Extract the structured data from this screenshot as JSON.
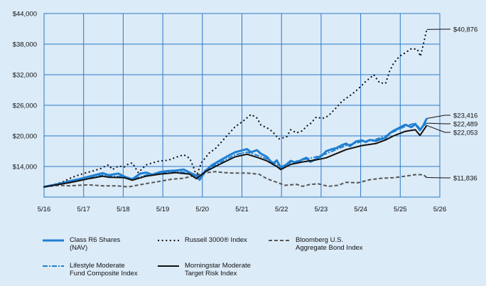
{
  "chart_data": {
    "type": "line",
    "x_ticks": [
      "5/16",
      "5/17",
      "5/18",
      "5/19",
      "5/20",
      "5/21",
      "5/22",
      "5/23",
      "5/24",
      "5/25",
      "5/26"
    ],
    "y_ticks": [
      "$14,000",
      "$20,000",
      "$26,000",
      "$32,000",
      "$38,000",
      "$44,000"
    ],
    "y_tick_values": [
      14000,
      20000,
      26000,
      32000,
      38000,
      44000
    ],
    "ylim": [
      8000,
      44000
    ],
    "grid": true,
    "legend_position": "bottom",
    "colors": {
      "background": "#dcebf8",
      "grid": "#2a78c9",
      "class_r6": "#1f7fd0",
      "lifestyle": "#1f7fd0",
      "russell": "#111111",
      "bloomberg": "#555555",
      "morningstar": "#111111"
    },
    "series": [
      {
        "key": "class_r6",
        "name": "Class R6 Shares\n(NAV)",
        "style": "solid-thick",
        "x": [
          2016.37,
          2016.5,
          2016.75,
          2017.0,
          2017.25,
          2017.5,
          2017.7,
          2017.85,
          2018.0,
          2018.25,
          2018.4,
          2018.6,
          2018.8,
          2018.95,
          2019.1,
          2019.3,
          2019.5,
          2019.7,
          2019.9,
          2020.05,
          2020.2,
          2020.3,
          2020.45,
          2020.6,
          2020.8,
          2021.0,
          2021.2,
          2021.5,
          2021.6,
          2021.75,
          2021.85,
          2022.0,
          2022.15,
          2022.25,
          2022.35,
          2022.5,
          2022.6,
          2022.75,
          2022.9,
          2023.0,
          2023.1,
          2023.25,
          2023.4,
          2023.5,
          2023.65,
          2023.75,
          2023.9,
          2024.0,
          2024.1,
          2024.25,
          2024.4,
          2024.5,
          2024.6,
          2024.75,
          2024.9,
          2025.0,
          2025.1,
          2025.2,
          2025.4,
          2025.5,
          2025.65,
          2025.75,
          2025.87,
          2025.95,
          2026.04
        ],
        "values": [
          10000,
          10200,
          10600,
          11100,
          11500,
          12000,
          12400,
          12700,
          12300,
          12600,
          12000,
          11500,
          12600,
          12800,
          12400,
          12900,
          13100,
          13200,
          13400,
          12800,
          12300,
          11400,
          13100,
          14200,
          15100,
          16000,
          16800,
          17400,
          16800,
          17200,
          16500,
          15900,
          14500,
          15200,
          13800,
          14400,
          15100,
          14700,
          15400,
          15700,
          14900,
          15500,
          16200,
          17000,
          17400,
          17600,
          18200,
          18500,
          18000,
          18900,
          19100,
          18800,
          19200,
          19000,
          19400,
          19600,
          20500,
          21000,
          21800,
          22200,
          21700,
          22300,
          21100,
          22000,
          23416
        ]
      },
      {
        "key": "russell",
        "name": "Russell 3000® Index",
        "style": "dotted",
        "x": [
          2016.37,
          2016.6,
          2016.85,
          2017.0,
          2017.2,
          2017.4,
          2017.6,
          2017.8,
          2017.9,
          2018.0,
          2018.1,
          2018.25,
          2018.4,
          2018.5,
          2018.6,
          2018.75,
          2018.95,
          2019.1,
          2019.3,
          2019.5,
          2019.7,
          2019.9,
          2020.05,
          2020.15,
          2020.22,
          2020.35,
          2020.55,
          2020.7,
          2020.85,
          2021.0,
          2021.2,
          2021.4,
          2021.6,
          2021.75,
          2021.85,
          2022.0,
          2022.15,
          2022.3,
          2022.5,
          2022.6,
          2022.75,
          2022.9,
          2023.0,
          2023.1,
          2023.25,
          2023.4,
          2023.55,
          2023.75,
          2023.9,
          2024.1,
          2024.25,
          2024.4,
          2024.5,
          2024.6,
          2024.7,
          2024.85,
          2025.0,
          2025.1,
          2025.2,
          2025.35,
          2025.5,
          2025.65,
          2025.8,
          2025.88,
          2025.95,
          2026.04
        ],
        "values": [
          10000,
          10400,
          11000,
          11600,
          12200,
          12700,
          13100,
          13600,
          14000,
          14300,
          13400,
          14100,
          13900,
          14500,
          14700,
          12800,
          14300,
          14700,
          15100,
          15200,
          15800,
          16300,
          15600,
          13800,
          12100,
          14800,
          16700,
          17500,
          18800,
          20100,
          21800,
          22900,
          24200,
          23500,
          22100,
          21600,
          20800,
          19400,
          19800,
          21200,
          20600,
          21000,
          21900,
          22400,
          23700,
          23400,
          23900,
          25500,
          26800,
          27900,
          28800,
          29900,
          30700,
          31300,
          32000,
          30400,
          30300,
          32700,
          34200,
          35600,
          36300,
          37100,
          37000,
          35600,
          37800,
          40876
        ]
      },
      {
        "key": "bloomberg",
        "name": "Bloomberg U.S.\nAggregate Bond Index",
        "style": "dashed",
        "x": [
          2016.37,
          2016.75,
          2017.0,
          2017.5,
          2017.85,
          2018.2,
          2018.5,
          2018.85,
          2019.0,
          2019.3,
          2019.6,
          2019.9,
          2020.2,
          2020.5,
          2020.7,
          2020.9,
          2021.2,
          2021.5,
          2021.8,
          2022.0,
          2022.25,
          2022.45,
          2022.75,
          2022.9,
          2023.1,
          2023.3,
          2023.55,
          2023.8,
          2024.0,
          2024.3,
          2024.6,
          2024.9,
          2025.2,
          2025.5,
          2025.75,
          2025.95,
          2026.04
        ],
        "values": [
          10000,
          10300,
          10200,
          10400,
          10200,
          10200,
          10000,
          10500,
          10700,
          11100,
          11500,
          11700,
          12300,
          12800,
          13000,
          12800,
          12700,
          12700,
          12500,
          11600,
          10900,
          10300,
          10500,
          10100,
          10500,
          10600,
          10100,
          10300,
          10900,
          10800,
          11400,
          11700,
          11800,
          12100,
          12400,
          12400,
          11836
        ]
      },
      {
        "key": "lifestyle",
        "name": "Lifestyle Moderate\nFund Composite Index",
        "style": "dashdot",
        "x": [
          2016.37,
          2016.75,
          2017.0,
          2017.5,
          2017.85,
          2018.0,
          2018.4,
          2018.6,
          2018.95,
          2019.3,
          2019.7,
          2020.05,
          2020.22,
          2020.45,
          2020.8,
          2021.2,
          2021.5,
          2021.75,
          2022.0,
          2022.25,
          2022.35,
          2022.6,
          2022.9,
          2023.25,
          2023.5,
          2023.75,
          2024.0,
          2024.4,
          2024.75,
          2025.0,
          2025.2,
          2025.5,
          2025.75,
          2025.87,
          2026.04
        ],
        "values": [
          10000,
          10500,
          10900,
          11700,
          12300,
          12100,
          12000,
          11500,
          12300,
          12700,
          13000,
          12800,
          11800,
          13300,
          14700,
          16300,
          16800,
          16200,
          15500,
          14400,
          13700,
          14800,
          15300,
          15900,
          16500,
          17300,
          18100,
          18900,
          19300,
          20000,
          20800,
          21900,
          22500,
          21400,
          22489
        ]
      },
      {
        "key": "morningstar",
        "name": "Morningstar Moderate\nTarget Risk Index",
        "style": "solid",
        "x": [
          2016.37,
          2016.75,
          2017.0,
          2017.5,
          2017.85,
          2018.0,
          2018.4,
          2018.6,
          2018.95,
          2019.3,
          2019.7,
          2020.05,
          2020.22,
          2020.45,
          2020.8,
          2021.2,
          2021.5,
          2021.75,
          2022.0,
          2022.25,
          2022.35,
          2022.6,
          2022.9,
          2023.25,
          2023.5,
          2023.75,
          2024.0,
          2024.4,
          2024.75,
          2025.0,
          2025.2,
          2025.5,
          2025.75,
          2025.87,
          2026.04
        ],
        "values": [
          10000,
          10500,
          10800,
          11600,
          12100,
          11900,
          11800,
          11300,
          12100,
          12500,
          12800,
          12500,
          11600,
          13000,
          14400,
          15900,
          16400,
          15800,
          15100,
          14000,
          13400,
          14400,
          14900,
          15300,
          15700,
          16500,
          17300,
          18100,
          18500,
          19200,
          20000,
          20900,
          21200,
          20100,
          22053
        ]
      }
    ],
    "end_labels": [
      {
        "series": "russell",
        "text": "$40,876"
      },
      {
        "series": "class_r6",
        "text": "$23,416"
      },
      {
        "series": "lifestyle",
        "text": "$22,489"
      },
      {
        "series": "morningstar",
        "text": "$22,053"
      },
      {
        "series": "bloomberg",
        "text": "$11,836"
      }
    ]
  }
}
